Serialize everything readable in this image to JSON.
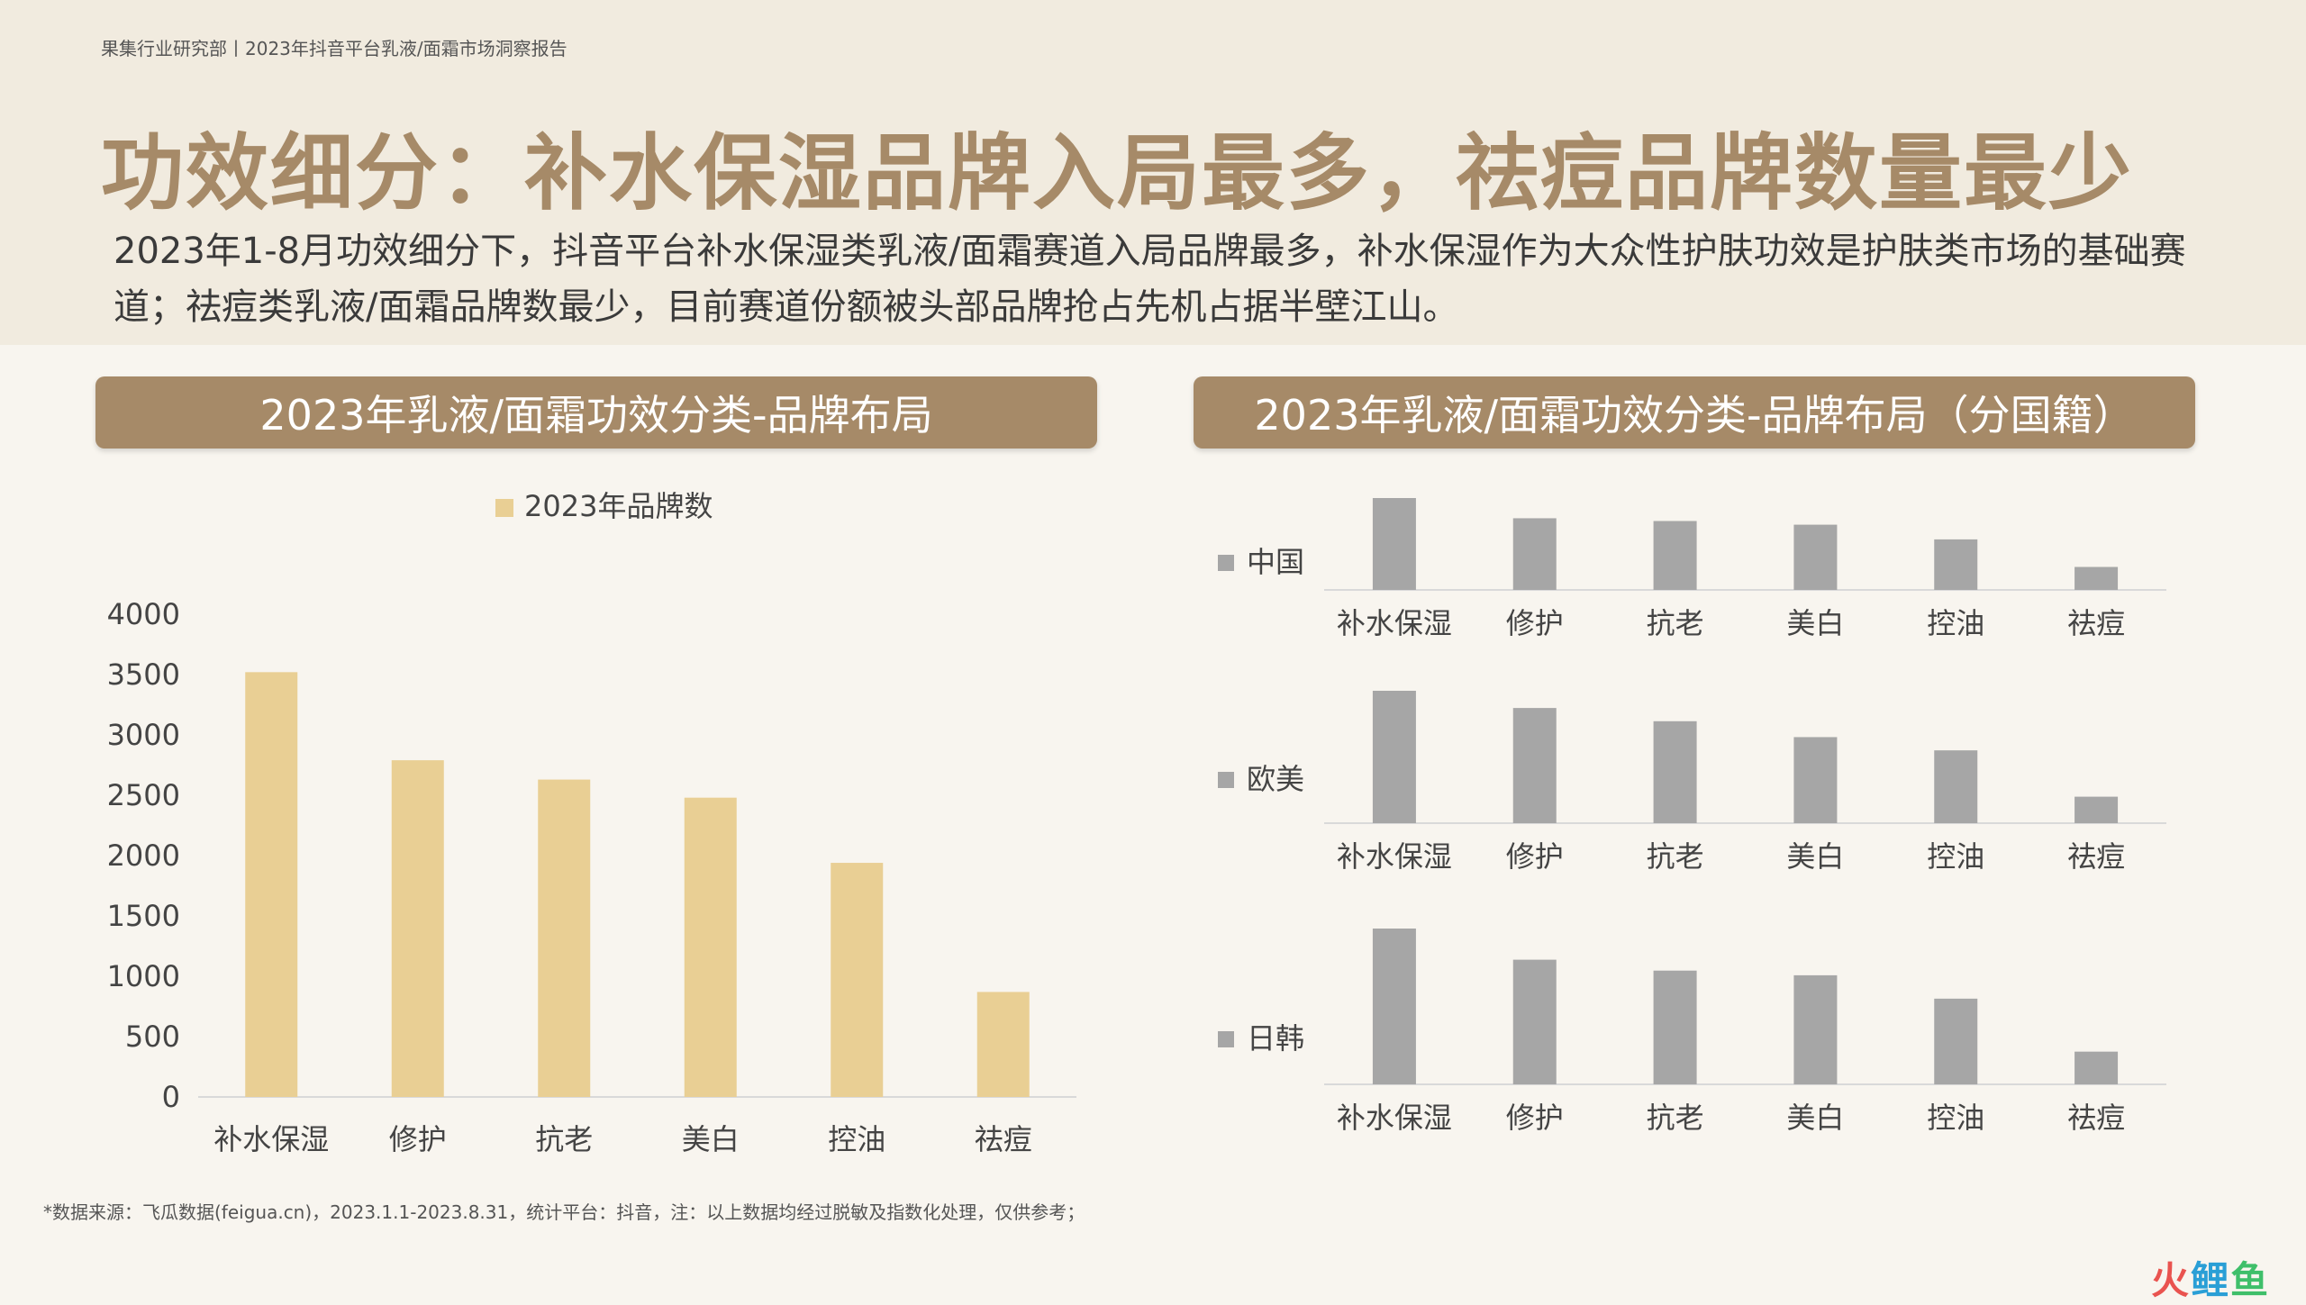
{
  "header": {
    "source": "果集行业研究部丨2023年抖音平台乳液/面霜市场洞察报告",
    "title": "功效细分：补水保湿品牌入局最多，祛痘品牌数量最少",
    "subtitle": "2023年1-8月功效细分下，抖音平台补水保湿类乳液/面霜赛道入局品牌最多，补水保湿作为大众性护肤功效是护肤类市场的基础赛道；祛痘类乳液/面霜品牌数最少，目前赛道份额被头部品牌抢占先机占据半壁江山。"
  },
  "footnote": "*数据来源：飞瓜数据(feigua.cn)，2023.1.1-2023.8.31，统计平台：抖音，注：以上数据均经过脱敏及指数化处理，仅供参考；",
  "logo": {
    "part1": "火",
    "part2": "鲤",
    "part3": "鱼"
  },
  "colors": {
    "accent": "#a68a68",
    "bar_main": "#e9cf94",
    "bar_sub": "#a6a6a6"
  },
  "chart_data": [
    {
      "type": "bar",
      "title": "2023年乳液/面霜功效分类-品牌布局",
      "categories": [
        "补水保湿",
        "修护",
        "抗老",
        "美白",
        "控油",
        "祛痘"
      ],
      "series": [
        {
          "name": "2023年品牌数",
          "values": [
            3520,
            2790,
            2630,
            2480,
            1940,
            870
          ]
        }
      ],
      "ylim": [
        0,
        4000
      ],
      "yticks": [
        "0",
        "500",
        "1000",
        "1500",
        "2000",
        "2500",
        "3000",
        "3500",
        "4000"
      ],
      "legend": "top-center",
      "grid": false
    },
    {
      "type": "bar",
      "title": "2023年乳液/面霜功效分类-品牌布局（分国籍）",
      "categories": [
        "补水保湿",
        "修护",
        "抗老",
        "美白",
        "控油",
        "祛痘"
      ],
      "series": [
        {
          "name": "中国",
          "values": [
            100,
            78,
            75,
            71,
            55,
            25
          ]
        },
        {
          "name": "欧美",
          "values": [
            100,
            87,
            77,
            65,
            55,
            20
          ]
        },
        {
          "name": "日韩",
          "values": [
            100,
            80,
            73,
            70,
            55,
            21
          ]
        }
      ],
      "legend": "left",
      "grid": false
    }
  ]
}
